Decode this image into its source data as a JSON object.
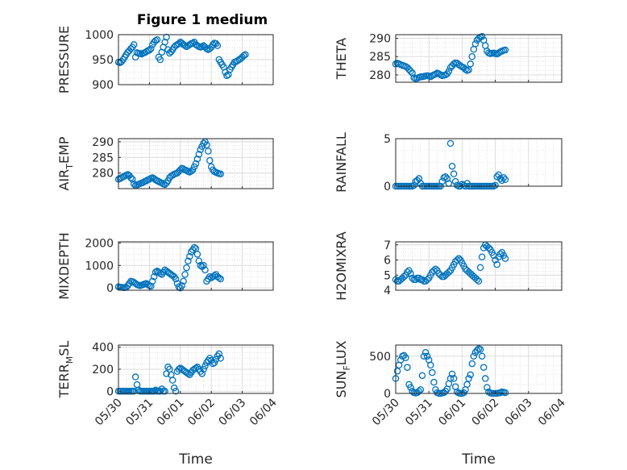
{
  "figure": {
    "title": "Figure 1 medium"
  },
  "colors": {
    "marker": "#0072BD",
    "axis": "#262626",
    "grid": "#d9d9d9",
    "background": "#ffffff"
  },
  "chart_data": [
    {
      "type": "scatter",
      "id": "pressure",
      "ylabel": {
        "main": "PRESSURE"
      },
      "xlim": [
        "05/30",
        "06/04"
      ],
      "ylim": [
        900,
        1000
      ],
      "yticks": [
        900,
        950,
        1000
      ],
      "xticklabels": [],
      "grid": true,
      "minor_grid": true,
      "x_days": [
        0.0,
        0.05,
        0.1,
        0.15,
        0.2,
        0.25,
        0.3,
        0.35,
        0.4,
        0.45,
        0.5,
        0.55,
        0.6,
        0.65,
        0.7,
        0.75,
        0.8,
        0.85,
        0.9,
        0.95,
        1.0,
        1.05,
        1.1,
        1.15,
        1.2,
        1.25,
        1.3,
        1.35,
        1.4,
        1.45,
        1.5,
        1.55,
        1.6,
        1.65,
        1.7,
        1.75,
        1.8,
        1.85,
        1.9,
        1.95,
        2.0,
        2.05,
        2.1,
        2.15,
        2.2,
        2.25,
        2.3,
        2.35,
        2.4,
        2.45,
        2.5,
        2.55,
        2.6,
        2.65,
        2.7,
        2.75,
        2.8,
        2.85,
        2.9,
        2.95,
        3.0,
        3.05,
        3.1,
        3.15,
        3.2,
        3.25,
        3.3,
        3.35,
        3.4,
        3.45,
        3.5,
        3.55,
        3.6,
        3.65,
        3.7,
        3.75,
        3.8,
        3.85,
        3.9,
        3.95,
        4.0,
        4.05,
        4.1
      ],
      "values": [
        945,
        944,
        946,
        950,
        955,
        960,
        965,
        968,
        972,
        975,
        980,
        955,
        964,
        963,
        962,
        961,
        963,
        964,
        966,
        968,
        969,
        972,
        980,
        985,
        988,
        990,
        955,
        950,
        965,
        975,
        985,
        995,
        970,
        963,
        966,
        970,
        975,
        978,
        980,
        982,
        985,
        983,
        980,
        978,
        976,
        978,
        980,
        982,
        983,
        985,
        980,
        978,
        976,
        975,
        976,
        978,
        975,
        972,
        970,
        972,
        975,
        980,
        983,
        982,
        978,
        950,
        945,
        940,
        935,
        925,
        918,
        920,
        930,
        935,
        940,
        945,
        946,
        948,
        950,
        952,
        955,
        958,
        960
      ]
    },
    {
      "type": "scatter",
      "id": "theta",
      "ylabel": {
        "main": "THETA"
      },
      "xlim": [
        "05/30",
        "06/04"
      ],
      "ylim": [
        278,
        291
      ],
      "yticks": [
        280,
        285,
        290
      ],
      "xticklabels": [],
      "grid": true,
      "minor_grid": true,
      "x_days": [
        0.0,
        0.05,
        0.1,
        0.15,
        0.2,
        0.25,
        0.3,
        0.35,
        0.4,
        0.45,
        0.5,
        0.55,
        0.6,
        0.65,
        0.7,
        0.75,
        0.8,
        0.85,
        0.9,
        0.95,
        1.0,
        1.05,
        1.1,
        1.15,
        1.2,
        1.25,
        1.3,
        1.35,
        1.4,
        1.45,
        1.5,
        1.55,
        1.6,
        1.65,
        1.7,
        1.75,
        1.8,
        1.85,
        1.9,
        1.95,
        2.0,
        2.05,
        2.1,
        2.15,
        2.2,
        2.25,
        2.3,
        2.35,
        2.4,
        2.45,
        2.5,
        2.55,
        2.6,
        2.65,
        2.7,
        2.75,
        2.8,
        2.85,
        2.9,
        2.95,
        3.0,
        3.05,
        3.1,
        3.15,
        3.2,
        3.25,
        3.3
      ],
      "values": [
        283,
        283.2,
        283,
        282.8,
        282.6,
        282.5,
        282.3,
        282,
        281.5,
        281,
        280.5,
        279.2,
        279,
        279.1,
        279.3,
        279.5,
        279.5,
        279.6,
        279.7,
        279.8,
        279.7,
        279.5,
        279.8,
        280,
        280.2,
        280.5,
        280.3,
        280,
        279.8,
        279.9,
        280,
        280.3,
        281,
        282,
        282.5,
        283,
        283.3,
        283.2,
        282.8,
        282.5,
        282.2,
        282,
        281.5,
        281.2,
        281.4,
        283,
        285,
        287,
        288.5,
        289.5,
        290,
        290.3,
        290.5,
        289.5,
        288,
        286.5,
        286,
        285.8,
        285.9,
        286,
        285.8,
        285.7,
        286,
        286.3,
        286.5,
        286.7,
        286.8
      ]
    },
    {
      "type": "scatter",
      "id": "air_temp",
      "ylabel": {
        "main": "AIR",
        "sub": "T",
        "rest": "EMP"
      },
      "xlim": [
        "05/30",
        "06/04"
      ],
      "ylim": [
        275,
        291
      ],
      "yticks": [
        280,
        285,
        290
      ],
      "xticklabels": [],
      "grid": true,
      "minor_grid": true,
      "x_days": [
        0.0,
        0.05,
        0.1,
        0.15,
        0.2,
        0.25,
        0.3,
        0.35,
        0.4,
        0.45,
        0.5,
        0.55,
        0.6,
        0.65,
        0.7,
        0.75,
        0.8,
        0.85,
        0.9,
        0.95,
        1.0,
        1.05,
        1.1,
        1.15,
        1.2,
        1.25,
        1.3,
        1.35,
        1.4,
        1.45,
        1.5,
        1.55,
        1.6,
        1.65,
        1.7,
        1.75,
        1.8,
        1.85,
        1.9,
        1.95,
        2.0,
        2.05,
        2.1,
        2.15,
        2.2,
        2.25,
        2.3,
        2.35,
        2.4,
        2.45,
        2.5,
        2.55,
        2.6,
        2.65,
        2.7,
        2.75,
        2.8,
        2.85,
        2.9,
        2.95,
        3.0,
        3.05,
        3.1,
        3.15,
        3.2,
        3.25,
        3.3
      ],
      "values": [
        278,
        278.2,
        278.5,
        278.8,
        279,
        279.3,
        279.5,
        279.2,
        278.5,
        278,
        276.5,
        276,
        276.2,
        276.4,
        276.6,
        276.8,
        277,
        277.3,
        277.5,
        277.8,
        278,
        278.3,
        278.5,
        278.2,
        277.8,
        277.5,
        277.3,
        277,
        276.8,
        276.5,
        276.3,
        276.8,
        277.5,
        278.5,
        279,
        279.3,
        279.6,
        279.8,
        280,
        280.5,
        281,
        281.5,
        281.3,
        281,
        280.8,
        280.5,
        280.3,
        280.6,
        281,
        282,
        283,
        284.5,
        286,
        287.5,
        288.5,
        289.5,
        290,
        289,
        287,
        284,
        282,
        281,
        280.5,
        280.2,
        280,
        279.8,
        279.7
      ]
    },
    {
      "type": "scatter",
      "id": "rainfall",
      "ylabel": {
        "main": "RAINFALL"
      },
      "xlim": [
        "05/30",
        "06/04"
      ],
      "ylim": [
        0,
        5
      ],
      "yticks": [
        0,
        5
      ],
      "xticklabels": [],
      "grid": true,
      "minor_grid": true,
      "x_days": [
        0.0,
        0.05,
        0.1,
        0.15,
        0.2,
        0.25,
        0.3,
        0.35,
        0.4,
        0.45,
        0.5,
        0.55,
        0.6,
        0.65,
        0.7,
        0.75,
        0.8,
        0.85,
        0.9,
        0.95,
        1.0,
        1.05,
        1.1,
        1.15,
        1.2,
        1.25,
        1.3,
        1.35,
        1.4,
        1.45,
        1.5,
        1.55,
        1.6,
        1.65,
        1.7,
        1.75,
        1.8,
        1.85,
        1.9,
        1.95,
        2.0,
        2.05,
        2.1,
        2.15,
        2.2,
        2.25,
        2.3,
        2.35,
        2.4,
        2.45,
        2.5,
        2.55,
        2.6,
        2.65,
        2.7,
        2.75,
        2.8,
        2.85,
        2.9,
        2.95,
        3.0,
        3.05,
        3.1,
        3.15,
        3.2,
        3.25,
        3.3
      ],
      "values": [
        0,
        0,
        0,
        0,
        0,
        0,
        0,
        0,
        0,
        0,
        0,
        0.1,
        0.5,
        0.6,
        0.8,
        0.3,
        0,
        0,
        0,
        0,
        0,
        0,
        0,
        0,
        0,
        0,
        0,
        0,
        0.5,
        0.9,
        1,
        0.8,
        0.3,
        4.5,
        2.1,
        1.3,
        0.5,
        0.1,
        0,
        0,
        0.2,
        0.1,
        0,
        0.3,
        0,
        0,
        0,
        0,
        0,
        0,
        0,
        0,
        0,
        0,
        0,
        0,
        0,
        0,
        0,
        0,
        0.1,
        1,
        1.2,
        0.8,
        0.6,
        0.9,
        0.7
      ]
    },
    {
      "type": "scatter",
      "id": "mixdepth",
      "ylabel": {
        "main": "MIXDEPTH"
      },
      "xlim": [
        "05/30",
        "06/04"
      ],
      "ylim": [
        -100,
        2050
      ],
      "yticks": [
        0,
        1000,
        2000
      ],
      "xticklabels": [],
      "grid": true,
      "minor_grid": true,
      "x_days": [
        0.0,
        0.05,
        0.1,
        0.15,
        0.2,
        0.25,
        0.3,
        0.35,
        0.4,
        0.45,
        0.5,
        0.55,
        0.6,
        0.65,
        0.7,
        0.75,
        0.8,
        0.85,
        0.9,
        0.95,
        1.0,
        1.05,
        1.1,
        1.15,
        1.2,
        1.25,
        1.3,
        1.35,
        1.4,
        1.45,
        1.5,
        1.55,
        1.6,
        1.65,
        1.7,
        1.75,
        1.8,
        1.85,
        1.9,
        1.95,
        2.0,
        2.05,
        2.1,
        2.15,
        2.2,
        2.25,
        2.3,
        2.35,
        2.4,
        2.45,
        2.5,
        2.55,
        2.6,
        2.65,
        2.7,
        2.75,
        2.8,
        2.85,
        2.9,
        2.95,
        3.0,
        3.05,
        3.1,
        3.15,
        3.2,
        3.25,
        3.3
      ],
      "values": [
        50,
        40,
        30,
        20,
        10,
        30,
        100,
        200,
        300,
        280,
        250,
        200,
        150,
        120,
        100,
        130,
        150,
        180,
        200,
        150,
        100,
        80,
        300,
        500,
        700,
        750,
        700,
        650,
        600,
        700,
        800,
        750,
        700,
        650,
        600,
        550,
        500,
        400,
        200,
        50,
        0,
        100,
        300,
        600,
        900,
        1200,
        1400,
        1600,
        1700,
        1800,
        1750,
        1500,
        1200,
        1000,
        950,
        1000,
        800,
        300,
        400,
        500,
        450,
        500,
        550,
        600,
        500,
        450,
        400
      ]
    },
    {
      "type": "scatter",
      "id": "h2omixra",
      "ylabel": {
        "main": "H2OMIXRA"
      },
      "xlim": [
        "05/30",
        "06/04"
      ],
      "ylim": [
        4,
        7.2
      ],
      "yticks": [
        4,
        5,
        6,
        7
      ],
      "xticklabels": [],
      "grid": true,
      "minor_grid": true,
      "x_days": [
        0.0,
        0.05,
        0.1,
        0.15,
        0.2,
        0.25,
        0.3,
        0.35,
        0.4,
        0.45,
        0.5,
        0.55,
        0.6,
        0.65,
        0.7,
        0.75,
        0.8,
        0.85,
        0.9,
        0.95,
        1.0,
        1.05,
        1.1,
        1.15,
        1.2,
        1.25,
        1.3,
        1.35,
        1.4,
        1.45,
        1.5,
        1.55,
        1.6,
        1.65,
        1.7,
        1.75,
        1.8,
        1.85,
        1.9,
        1.95,
        2.0,
        2.05,
        2.1,
        2.15,
        2.2,
        2.25,
        2.3,
        2.35,
        2.4,
        2.45,
        2.5,
        2.55,
        2.6,
        2.65,
        2.7,
        2.75,
        2.8,
        2.85,
        2.9,
        2.95,
        3.0,
        3.05,
        3.1,
        3.15,
        3.2,
        3.25,
        3.3
      ],
      "values": [
        4.7,
        4.6,
        4.6,
        4.7,
        4.8,
        4.9,
        5.0,
        5.2,
        5.3,
        5.1,
        4.8,
        4.7,
        4.7,
        4.8,
        4.8,
        4.7,
        4.7,
        4.6,
        4.6,
        4.7,
        4.8,
        5.0,
        5.2,
        5.3,
        5.4,
        5.3,
        5.1,
        5.0,
        4.9,
        4.9,
        5.0,
        5.1,
        5.2,
        5.3,
        5.5,
        5.7,
        5.9,
        6.0,
        6.1,
        6.0,
        5.8,
        5.6,
        5.4,
        5.3,
        5.2,
        5.1,
        5.0,
        4.9,
        4.8,
        4.7,
        4.6,
        5.5,
        6.2,
        6.8,
        7.0,
        6.9,
        6.8,
        6.7,
        6.5,
        6.3,
        6.0,
        5.7,
        6.2,
        6.4,
        6.5,
        6.3,
        6.1
      ]
    },
    {
      "type": "scatter",
      "id": "terr_msl",
      "ylabel": {
        "main": "TERR",
        "sub": "M",
        "rest": "SL"
      },
      "xlim": [
        "05/30",
        "06/04"
      ],
      "ylim": [
        -20,
        420
      ],
      "yticks": [
        0,
        200,
        400
      ],
      "xticklabels": [
        "05/30",
        "05/31",
        "06/01",
        "06/02",
        "06/03",
        "06/04"
      ],
      "xlabel": "Time",
      "grid": true,
      "minor_grid": true,
      "x_days": [
        0.0,
        0.05,
        0.1,
        0.15,
        0.2,
        0.25,
        0.3,
        0.35,
        0.4,
        0.45,
        0.5,
        0.55,
        0.6,
        0.65,
        0.7,
        0.75,
        0.8,
        0.85,
        0.9,
        0.95,
        1.0,
        1.05,
        1.1,
        1.15,
        1.2,
        1.25,
        1.3,
        1.35,
        1.4,
        1.45,
        1.5,
        1.55,
        1.6,
        1.65,
        1.7,
        1.75,
        1.8,
        1.85,
        1.9,
        1.95,
        2.0,
        2.05,
        2.1,
        2.15,
        2.2,
        2.25,
        2.3,
        2.35,
        2.4,
        2.45,
        2.5,
        2.55,
        2.6,
        2.65,
        2.7,
        2.75,
        2.8,
        2.85,
        2.9,
        2.95,
        3.0,
        3.05,
        3.1,
        3.15,
        3.2,
        3.25,
        3.3
      ],
      "values": [
        0,
        0,
        0,
        0,
        0,
        0,
        0,
        0,
        0,
        0,
        0,
        130,
        60,
        10,
        0,
        0,
        0,
        0,
        0,
        0,
        0,
        0,
        0,
        0,
        10,
        0,
        0,
        0,
        20,
        0,
        0,
        160,
        220,
        200,
        150,
        100,
        30,
        0,
        180,
        200,
        210,
        200,
        190,
        180,
        170,
        160,
        150,
        170,
        190,
        200,
        210,
        220,
        200,
        180,
        160,
        200,
        230,
        260,
        280,
        300,
        280,
        250,
        260,
        290,
        320,
        340,
        300
      ]
    },
    {
      "type": "scatter",
      "id": "sun_flux",
      "ylabel": {
        "main": "SUN",
        "sub": "F",
        "rest": "LUX"
      },
      "xlim": [
        "05/30",
        "06/04"
      ],
      "ylim": [
        0,
        650
      ],
      "yticks": [
        0,
        500
      ],
      "xticklabels": [
        "05/30",
        "05/31",
        "06/01",
        "06/02",
        "06/03",
        "06/04"
      ],
      "xlabel": "Time",
      "grid": true,
      "minor_grid": true,
      "x_days": [
        0.0,
        0.05,
        0.1,
        0.15,
        0.2,
        0.25,
        0.3,
        0.35,
        0.4,
        0.45,
        0.5,
        0.55,
        0.6,
        0.65,
        0.7,
        0.75,
        0.8,
        0.85,
        0.9,
        0.95,
        1.0,
        1.05,
        1.1,
        1.15,
        1.2,
        1.25,
        1.3,
        1.35,
        1.4,
        1.45,
        1.5,
        1.55,
        1.6,
        1.65,
        1.7,
        1.75,
        1.8,
        1.85,
        1.9,
        1.95,
        2.0,
        2.05,
        2.1,
        2.15,
        2.2,
        2.25,
        2.3,
        2.35,
        2.4,
        2.45,
        2.5,
        2.55,
        2.6,
        2.65,
        2.7,
        2.75,
        2.8,
        2.85,
        2.9,
        2.95,
        3.0,
        3.05,
        3.1,
        3.15,
        3.2,
        3.25,
        3.3
      ],
      "values": [
        200,
        300,
        380,
        450,
        500,
        510,
        480,
        350,
        120,
        80,
        30,
        10,
        5,
        10,
        30,
        50,
        240,
        500,
        550,
        500,
        450,
        380,
        280,
        150,
        50,
        10,
        0,
        0,
        5,
        10,
        30,
        60,
        130,
        200,
        260,
        200,
        90,
        20,
        5,
        0,
        0,
        10,
        50,
        120,
        200,
        250,
        400,
        500,
        550,
        580,
        600,
        590,
        500,
        350,
        200,
        80,
        20,
        5,
        0,
        0,
        0,
        0,
        5,
        10,
        20,
        15,
        10
      ]
    }
  ]
}
